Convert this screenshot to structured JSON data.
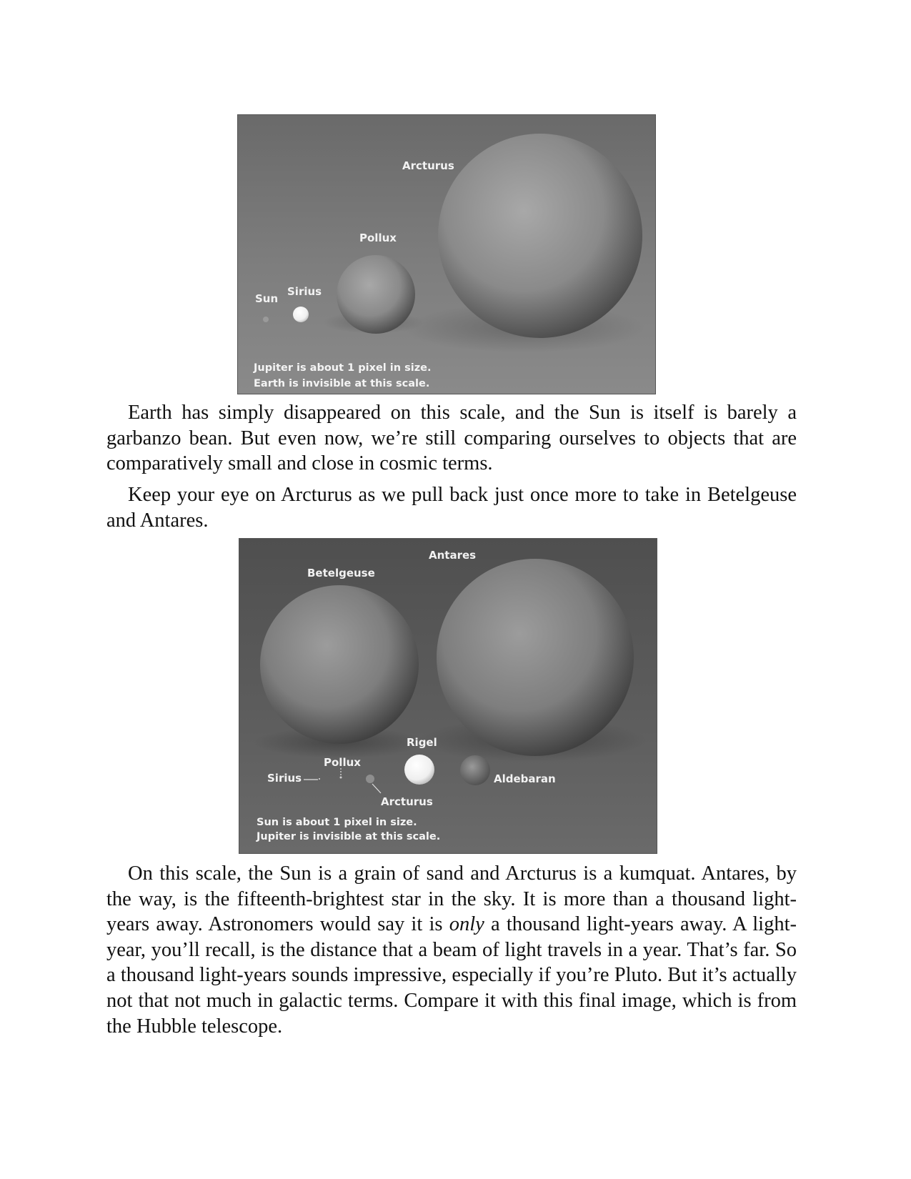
{
  "figure1": {
    "labels": {
      "arcturus": "Arcturus",
      "pollux": "Pollux",
      "sirius": "Sirius",
      "sun": "Sun"
    },
    "caption_line1": "Jupiter is about 1 pixel in size.",
    "caption_line2": "Earth is invisible at this scale."
  },
  "paragraph1": "Earth has simply disappeared on this scale, and the Sun is itself is barely a garbanzo bean. But even now, we’re still comparing ourselves to objects that are comparatively small and close in cosmic terms.",
  "paragraph2": "Keep your eye on Arcturus as we pull back just once more to take in Betelgeuse and Antares.",
  "figure2": {
    "labels": {
      "antares": "Antares",
      "betelgeuse": "Betelgeuse",
      "rigel": "Rigel",
      "pollux": "Pollux",
      "sirius": "Sirius",
      "aldebaran": "Aldebaran",
      "arcturus": "Arcturus"
    },
    "caption_line1": "Sun is about 1 pixel in size.",
    "caption_line2": "Jupiter is invisible at this scale."
  },
  "paragraph3": {
    "before_em": "On this scale, the Sun is a grain of sand and Arcturus is a kumquat. Antares, by the way, is the fifteenth-brightest star in the sky. It is more than a thousand light-years away. Astronomers would say it is ",
    "em": "only",
    "after_em": " a thousand light-years away. A light-year, you’ll recall, is the distance that a beam of light travels in a year. That’s far. So a thousand light-years sounds impressive, especially if you’re Pluto. But it’s actually not that not much in galactic terms. Compare it with this final image, which is from the Hubble telescope."
  }
}
